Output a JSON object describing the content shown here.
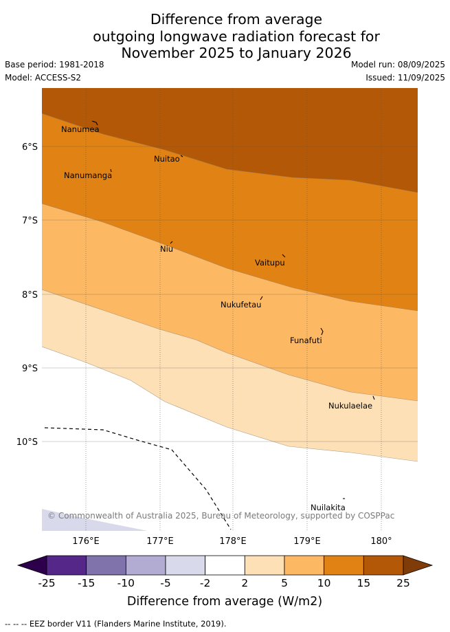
{
  "title": {
    "line1": "Difference from average",
    "line2": "outgoing longwave radiation forecast for",
    "line3": "November 2025 to January 2026"
  },
  "meta": {
    "base_period": "Base period: 1981-2018",
    "model": "Model: ACCESS-S2",
    "model_run": "Model run: 08/09/2025",
    "issued": "Issued: 11/09/2025"
  },
  "map": {
    "lat_labels": [
      "6°S",
      "7°S",
      "8°S",
      "9°S",
      "10°S"
    ],
    "lon_labels": [
      "176°E",
      "177°E",
      "178°E",
      "179°E",
      "180°"
    ],
    "places": [
      "Nanumea",
      "Nanumanga",
      "Nuitao",
      "Niu",
      "Vaitupu",
      "Nukufetau",
      "Funafuti",
      "Nukulaelae",
      "Nuilakita"
    ],
    "copyright": "© Commonwealth of Australia 2025, Bureau of Meteorology, supported by COSPPac",
    "colors": {
      "band_15_25": "#b35806",
      "band_10_15": "#e08214",
      "band_5_10": "#fdb863",
      "band_2_5": "#fee0b6",
      "band_neg2_2": "#ffffff",
      "band_neg5_neg2": "#d8daeb"
    }
  },
  "colorbar": {
    "ticks": [
      "-25",
      "-15",
      "-10",
      "-5",
      "-2",
      "2",
      "5",
      "10",
      "15",
      "25"
    ],
    "colors": [
      "#2d004b",
      "#542788",
      "#8073ac",
      "#b2abd2",
      "#d8daeb",
      "#ffffff",
      "#fee0b6",
      "#fdb863",
      "#e08214",
      "#b35806",
      "#7f3b08"
    ],
    "label": "Difference from average (W/m2)"
  },
  "footnote": "-- --  -- EEZ border V11 (Flanders Marine Institute, 2019)."
}
